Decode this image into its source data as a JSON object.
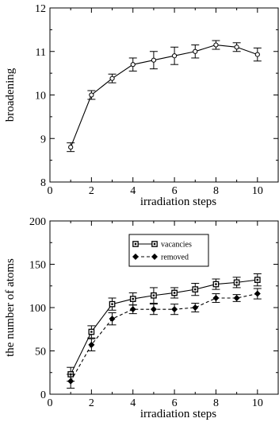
{
  "chart_data": [
    {
      "type": "line",
      "xlabel": "irradiation steps",
      "ylabel": "broadening",
      "xlim": [
        0,
        11
      ],
      "ylim": [
        8,
        12
      ],
      "x_ticks": [
        0,
        2,
        4,
        6,
        8,
        10
      ],
      "y_ticks": [
        8,
        9,
        10,
        11,
        12
      ],
      "grid": false,
      "series": [
        {
          "marker": "open-circle",
          "line_style": "solid",
          "x": [
            1,
            2,
            3,
            4,
            5,
            6,
            7,
            8,
            9,
            10
          ],
          "y": [
            8.8,
            10.0,
            10.38,
            10.7,
            10.8,
            10.9,
            11.0,
            11.15,
            11.1,
            10.93
          ],
          "error": [
            0.1,
            0.1,
            0.1,
            0.15,
            0.2,
            0.2,
            0.15,
            0.1,
            0.1,
            0.15
          ]
        }
      ]
    },
    {
      "type": "line",
      "xlabel": "irradiation steps",
      "ylabel": "the number of atoms",
      "xlim": [
        0,
        11
      ],
      "ylim": [
        0,
        200
      ],
      "x_ticks": [
        0,
        2,
        4,
        6,
        8,
        10
      ],
      "y_ticks": [
        0,
        50,
        100,
        150,
        200
      ],
      "grid": false,
      "legend_position": "top-center",
      "series": [
        {
          "name": "vacancies",
          "marker": "square",
          "line_style": "solid",
          "x": [
            1,
            2,
            3,
            4,
            5,
            6,
            7,
            8,
            9,
            10
          ],
          "y": [
            23,
            72,
            104,
            110,
            114,
            117,
            121,
            127,
            129,
            132
          ],
          "error": [
            8,
            7,
            7,
            7,
            9,
            6,
            7,
            6,
            6,
            7
          ]
        },
        {
          "name": "removed",
          "marker": "diamond",
          "line_style": "dashed",
          "x": [
            1,
            2,
            3,
            4,
            5,
            6,
            7,
            8,
            9,
            10
          ],
          "y": [
            15,
            57,
            87,
            98,
            98,
            98,
            100,
            111,
            111,
            116
          ],
          "error": [
            8,
            7,
            7,
            5,
            6,
            6,
            5,
            5,
            4,
            6
          ]
        }
      ]
    }
  ]
}
